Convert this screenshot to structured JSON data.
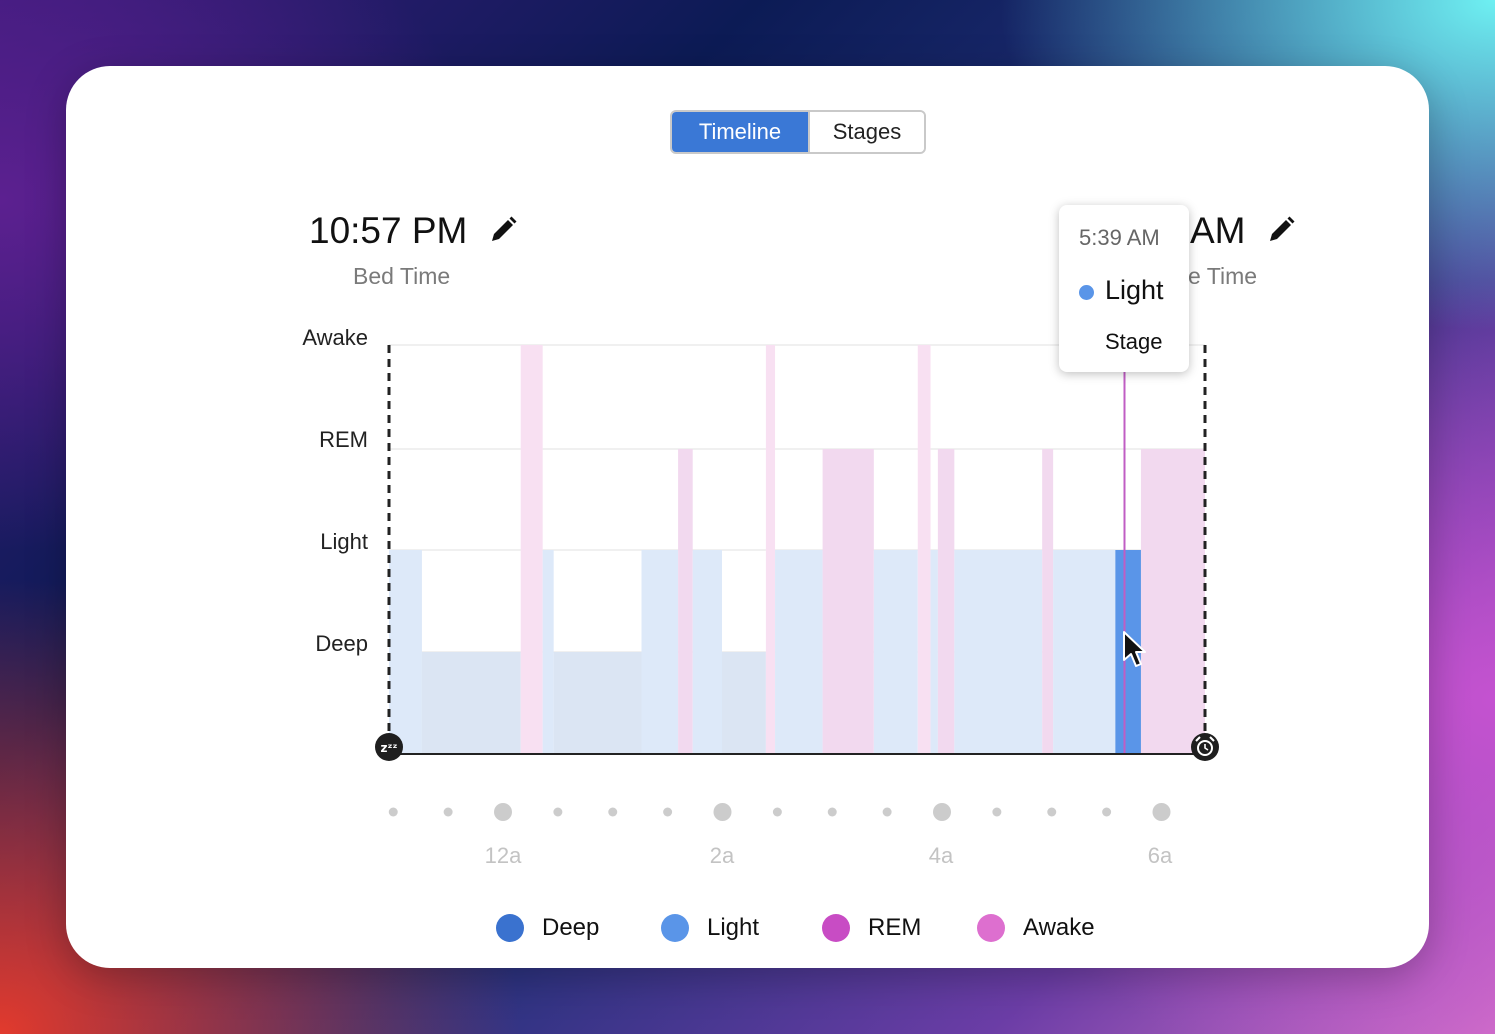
{
  "toggle": {
    "timeline_label": "Timeline",
    "stages_label": "Stages"
  },
  "bed": {
    "time": "10:57 PM",
    "label": "Bed Time"
  },
  "wake": {
    "time": "AM",
    "label": "e Time"
  },
  "tooltip": {
    "time": "5:39 AM",
    "stage": "Light",
    "sub": "Stage"
  },
  "icons": {
    "start": "sleep-zzz-icon",
    "end": "alarm-clock-icon",
    "edit": "pencil-icon",
    "cursor": "mouse-pointer-icon"
  },
  "colors": {
    "deep": "#3a72cf",
    "light": "#5a95e8",
    "rem": "#c84cc4",
    "awake": "#dd6fcf"
  },
  "chart_data": {
    "type": "area",
    "title": "",
    "xlabel": "",
    "ylabel": "",
    "y_categories": [
      "Deep",
      "Light",
      "REM",
      "Awake"
    ],
    "x_ticks": [
      "12a",
      "2a",
      "4a",
      "6a"
    ],
    "x_range": [
      "22:57",
      "6:23"
    ],
    "highlight_time": "5:39",
    "segments": [
      {
        "stage": "Light",
        "start": "22:57",
        "end": "23:15"
      },
      {
        "stage": "Deep",
        "start": "23:15",
        "end": "0:09"
      },
      {
        "stage": "Awake",
        "start": "0:09",
        "end": "0:21"
      },
      {
        "stage": "Light",
        "start": "0:21",
        "end": "0:27"
      },
      {
        "stage": "Deep",
        "start": "0:27",
        "end": "1:15"
      },
      {
        "stage": "Light",
        "start": "1:15",
        "end": "1:35"
      },
      {
        "stage": "REM",
        "start": "1:35",
        "end": "1:43"
      },
      {
        "stage": "Light",
        "start": "1:43",
        "end": "1:59"
      },
      {
        "stage": "Deep",
        "start": "1:59",
        "end": "2:23"
      },
      {
        "stage": "Awake",
        "start": "2:23",
        "end": "2:28"
      },
      {
        "stage": "Light",
        "start": "2:28",
        "end": "2:54"
      },
      {
        "stage": "REM",
        "start": "2:54",
        "end": "3:22"
      },
      {
        "stage": "Light",
        "start": "3:22",
        "end": "3:46"
      },
      {
        "stage": "Awake",
        "start": "3:46",
        "end": "3:53"
      },
      {
        "stage": "Light",
        "start": "3:53",
        "end": "3:57"
      },
      {
        "stage": "REM",
        "start": "3:57",
        "end": "4:06"
      },
      {
        "stage": "Light",
        "start": "4:06",
        "end": "4:54"
      },
      {
        "stage": "REM",
        "start": "4:54",
        "end": "5:00"
      },
      {
        "stage": "Light",
        "start": "5:00",
        "end": "5:34"
      },
      {
        "stage": "Light",
        "start": "5:34",
        "end": "5:48"
      },
      {
        "stage": "REM",
        "start": "5:48",
        "end": "6:23"
      }
    ],
    "highlighted_segment": 19,
    "legend": [
      "Deep",
      "Light",
      "REM",
      "Awake"
    ],
    "legend_position": "bottom",
    "grid": true
  }
}
